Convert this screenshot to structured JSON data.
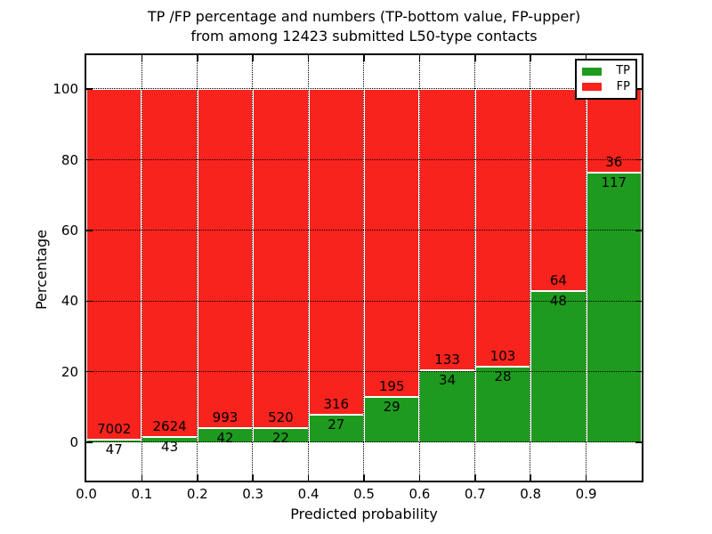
{
  "header": {
    "line1": "TP /FP percentage and numbers (TP-bottom value, FP-upper)",
    "line2": "from among 12423 submitted L50-type contacts"
  },
  "chart_data": {
    "type": "bar",
    "variant": "stacked-100percent-histogram",
    "title": "TP /FP percentage and numbers (TP-bottom value, FP-upper) from among 12423 submitted L50-type contacts",
    "xlabel": "Predicted probability",
    "ylabel": "Percentage",
    "total_contacts": 12423,
    "xlim": [
      0.0,
      1.0
    ],
    "ylim": [
      -10.8,
      109.6
    ],
    "bin_width": 0.1,
    "bin_starts": [
      0.0,
      0.1,
      0.2,
      0.3,
      0.4,
      0.5,
      0.6,
      0.7,
      0.8,
      0.9
    ],
    "xtick_labels": [
      "0.0",
      "0.1",
      "0.2",
      "0.3",
      "0.4",
      "0.5",
      "0.6",
      "0.7",
      "0.8",
      "0.9"
    ],
    "ytick_values": [
      0,
      20,
      40,
      60,
      80,
      100
    ],
    "ytick_labels": [
      "0",
      "20",
      "40",
      "60",
      "80",
      "100"
    ],
    "grid": {
      "style": "dotted",
      "color": "#000000",
      "drawn_over_bars": true
    },
    "series": [
      {
        "name": "TP",
        "color": "#1e9b1e",
        "values": [
          47,
          43,
          42,
          22,
          27,
          29,
          34,
          28,
          48,
          117
        ]
      },
      {
        "name": "FP",
        "color": "#f8231c",
        "values": [
          7002,
          2624,
          993,
          520,
          316,
          195,
          133,
          103,
          64,
          36
        ]
      }
    ],
    "tp_percent": [
      0.67,
      1.61,
      4.06,
      4.06,
      7.87,
      12.95,
      20.36,
      21.37,
      42.86,
      76.47
    ],
    "legend": {
      "position": "upper-right",
      "entries": [
        {
          "label": "TP",
          "color": "#1e9b1e"
        },
        {
          "label": "FP",
          "color": "#f8231c"
        }
      ]
    },
    "bar_edge_color": "#ffffff",
    "background_color": "#ffffff"
  }
}
